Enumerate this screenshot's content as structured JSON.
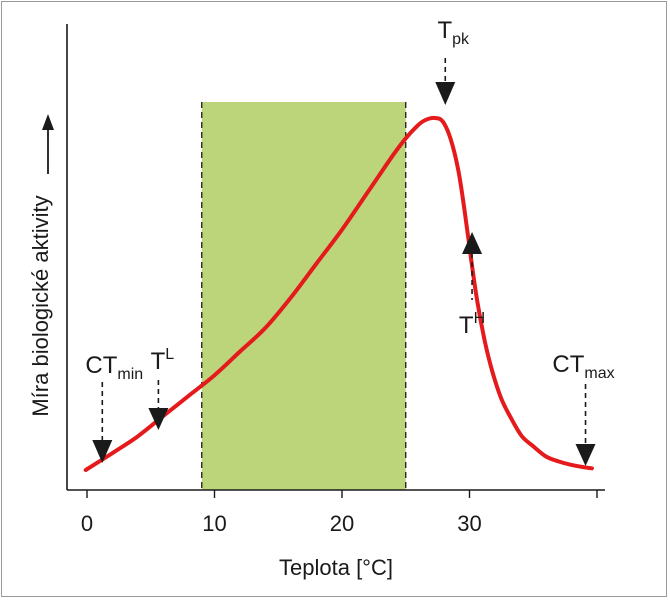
{
  "chart_data": {
    "type": "line",
    "title": "",
    "xlabel": "Teplota [°C]",
    "ylabel": "Míra biologické aktivity",
    "x_ticks": [
      0,
      10,
      20,
      30
    ],
    "xlim": [
      -0.5,
      40
    ],
    "grid": false,
    "shaded_region": {
      "x_start": 9,
      "x_end": 25,
      "color": "#bcd57a"
    },
    "series": [
      {
        "color": "#e41a1c",
        "x": [
          -0.1,
          2,
          4,
          6,
          8,
          10,
          12,
          14,
          16,
          18,
          20,
          22,
          24,
          25,
          26,
          26.6,
          27.3,
          27.9,
          28.5,
          29.1,
          29.6,
          30.1,
          30.6,
          31.2,
          31.8,
          32.5,
          33.3,
          34.1,
          35,
          36,
          37,
          38,
          39,
          39.6
        ],
        "y": [
          0,
          0.05,
          0.1,
          0.16,
          0.22,
          0.28,
          0.35,
          0.42,
          0.51,
          0.61,
          0.71,
          0.82,
          0.93,
          0.98,
          1.02,
          1.035,
          1.04,
          1.03,
          0.98,
          0.89,
          0.77,
          0.63,
          0.5,
          0.38,
          0.29,
          0.21,
          0.15,
          0.1,
          0.07,
          0.04,
          0.025,
          0.015,
          0.008,
          0.005
        ]
      }
    ],
    "annotations": [
      {
        "base": "CT",
        "sub": "min",
        "sup": "",
        "x": 1.2,
        "direction": "down"
      },
      {
        "base": "T",
        "sub": "",
        "sup": "L",
        "x": 5.6,
        "direction": "down"
      },
      {
        "base": "T",
        "sub": "pk",
        "sup": "",
        "x": 28.1,
        "direction": "down"
      },
      {
        "base": "T",
        "sub": "",
        "sup": "H",
        "x": 30.2,
        "direction": "up"
      },
      {
        "base": "CT",
        "sub": "max",
        "sup": "",
        "x": 39.1,
        "direction": "down"
      }
    ]
  }
}
